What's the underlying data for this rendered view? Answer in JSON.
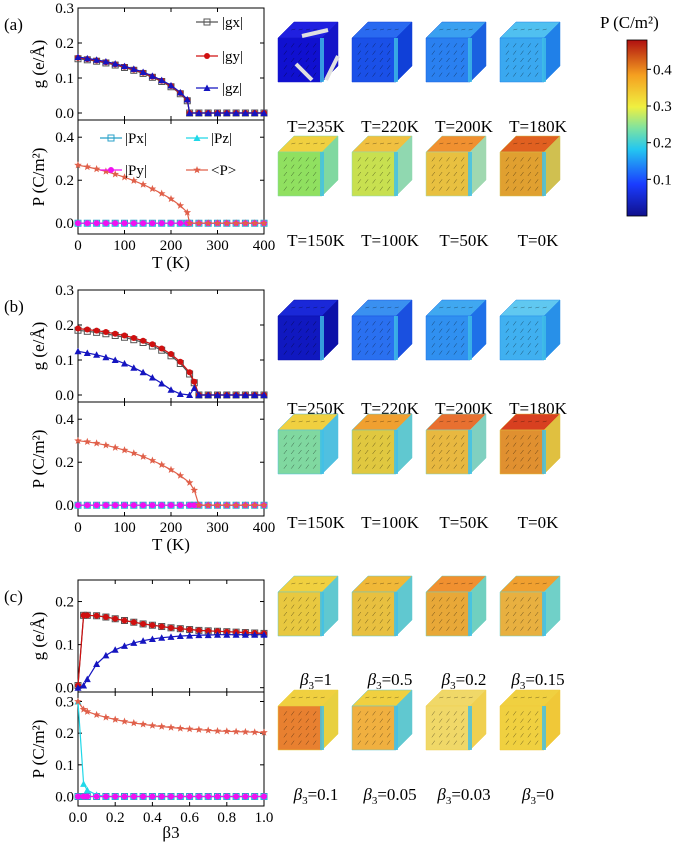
{
  "colorbar": {
    "title": "P (C/m²)",
    "ticks": [
      0.1,
      0.2,
      0.3,
      0.4
    ],
    "min": 0.0,
    "max": 0.48
  },
  "panels": [
    {
      "label": "(a)",
      "g_ylabel": "g (e/Å)",
      "p_ylabel": "P (C/m²)",
      "xlabel": "T (K)",
      "g_legend": [
        "|gx|",
        "|gy|",
        "|gz|"
      ],
      "p_legend": [
        "|Px|",
        "|Pz|",
        "|Py|",
        "<P>"
      ],
      "cube_labels": [
        "T=235K",
        "T=220K",
        "T=200K",
        "T=180K",
        "T=150K",
        "T=100K",
        "T=50K",
        "T=0K"
      ]
    },
    {
      "label": "(b)",
      "g_ylabel": "g (e/Å)",
      "p_ylabel": "P (C/m²)",
      "xlabel": "T (K)",
      "cube_labels": [
        "T=250K",
        "T=220K",
        "T=200K",
        "T=180K",
        "T=150K",
        "T=100K",
        "T=50K",
        "T=0K"
      ]
    },
    {
      "label": "(c)",
      "g_ylabel": "g (e/Å)",
      "p_ylabel": "P (C/m²)",
      "xlabel": "β3",
      "cube_labels": [
        "β3=1",
        "β3=0.5",
        "β3=0.2",
        "β3=0.15",
        "β3=0.1",
        "β3=0.05",
        "β3=0.03",
        "β3=0"
      ]
    }
  ],
  "chart_data": [
    {
      "type": "line",
      "panel": "a-top",
      "xlim": [
        0,
        400
      ],
      "ylim": [
        -0.02,
        0.3
      ],
      "yticks": [
        0.0,
        0.1,
        0.2,
        0.3
      ],
      "xticks": [
        0,
        100,
        200,
        300,
        400
      ],
      "x": [
        0,
        20,
        40,
        60,
        80,
        100,
        120,
        140,
        160,
        180,
        200,
        220,
        235,
        240,
        260,
        280,
        300,
        320,
        340,
        360,
        380,
        400
      ],
      "series": [
        {
          "name": "|gx|",
          "values": [
            0.155,
            0.152,
            0.148,
            0.143,
            0.137,
            0.13,
            0.122,
            0.113,
            0.102,
            0.09,
            0.075,
            0.055,
            0.035,
            0.0,
            0.0,
            0.0,
            0.0,
            0.0,
            0.0,
            0.0,
            0.0,
            0.0
          ]
        },
        {
          "name": "|gy|",
          "values": [
            0.158,
            0.154,
            0.15,
            0.145,
            0.139,
            0.132,
            0.124,
            0.115,
            0.104,
            0.092,
            0.077,
            0.057,
            0.037,
            0.0,
            0.0,
            0.0,
            0.0,
            0.0,
            0.0,
            0.0,
            0.0,
            0.0
          ]
        },
        {
          "name": "|gz|",
          "values": [
            0.16,
            0.156,
            0.152,
            0.147,
            0.141,
            0.134,
            0.126,
            0.117,
            0.106,
            0.094,
            0.079,
            0.059,
            0.039,
            0.0,
            0.0,
            0.0,
            0.0,
            0.0,
            0.0,
            0.0,
            0.0,
            0.0
          ]
        }
      ]
    },
    {
      "type": "line",
      "panel": "a-bottom",
      "xlim": [
        0,
        400
      ],
      "ylim": [
        -0.05,
        0.48
      ],
      "yticks": [
        0.0,
        0.2,
        0.4
      ],
      "xticks": [
        0,
        100,
        200,
        300,
        400
      ],
      "x": [
        0,
        20,
        40,
        60,
        80,
        100,
        120,
        140,
        160,
        180,
        200,
        220,
        235,
        240,
        260,
        280,
        300,
        320,
        340,
        360,
        380,
        400
      ],
      "series": [
        {
          "name": "|Px|",
          "values": [
            0,
            0,
            0,
            0,
            0,
            0,
            0,
            0,
            0,
            0,
            0,
            0,
            0,
            0,
            0,
            0,
            0,
            0,
            0,
            0,
            0,
            0
          ]
        },
        {
          "name": "|Pz|",
          "values": [
            0,
            0,
            0,
            0,
            0,
            0,
            0,
            0,
            0,
            0,
            0,
            0,
            0,
            0,
            0,
            0,
            0,
            0,
            0,
            0,
            0,
            0
          ]
        },
        {
          "name": "|Py|",
          "values": [
            0,
            0,
            0,
            0,
            0,
            0,
            0,
            0,
            0,
            0,
            0,
            0,
            0,
            0,
            0,
            0,
            0,
            0,
            0,
            0,
            0,
            0
          ]
        },
        {
          "name": "<P>",
          "values": [
            0.27,
            0.262,
            0.252,
            0.241,
            0.228,
            0.214,
            0.198,
            0.18,
            0.16,
            0.138,
            0.113,
            0.082,
            0.05,
            0.0,
            0.0,
            0.0,
            0.0,
            0.0,
            0.0,
            0.0,
            0.0,
            0.0
          ]
        }
      ]
    },
    {
      "type": "line",
      "panel": "b-top",
      "xlim": [
        0,
        400
      ],
      "ylim": [
        -0.02,
        0.3
      ],
      "yticks": [
        0.0,
        0.1,
        0.2,
        0.3
      ],
      "xticks": [
        0,
        100,
        200,
        300,
        400
      ],
      "x": [
        0,
        20,
        40,
        60,
        80,
        100,
        120,
        140,
        160,
        180,
        200,
        220,
        240,
        250,
        260,
        280,
        300,
        320,
        340,
        360,
        380,
        400
      ],
      "series": [
        {
          "name": "|gx|",
          "values": [
            0.185,
            0.182,
            0.179,
            0.175,
            0.17,
            0.165,
            0.158,
            0.15,
            0.14,
            0.128,
            0.112,
            0.09,
            0.06,
            0.035,
            0.0,
            0.0,
            0.0,
            0.0,
            0.0,
            0.0,
            0.0,
            0.0
          ]
        },
        {
          "name": "|gy|",
          "values": [
            0.19,
            0.187,
            0.184,
            0.18,
            0.175,
            0.17,
            0.163,
            0.155,
            0.145,
            0.133,
            0.117,
            0.095,
            0.065,
            0.038,
            0.0,
            0.0,
            0.0,
            0.0,
            0.0,
            0.0,
            0.0,
            0.0
          ]
        },
        {
          "name": "|gz|",
          "values": [
            0.125,
            0.12,
            0.115,
            0.108,
            0.1,
            0.09,
            0.078,
            0.065,
            0.05,
            0.033,
            0.015,
            0.003,
            0.0,
            0.02,
            0.0,
            0.0,
            0.0,
            0.0,
            0.0,
            0.0,
            0.0,
            0.0
          ]
        }
      ]
    },
    {
      "type": "line",
      "panel": "b-bottom",
      "xlim": [
        0,
        400
      ],
      "ylim": [
        -0.05,
        0.48
      ],
      "yticks": [
        0.0,
        0.2,
        0.4
      ],
      "xticks": [
        0,
        100,
        200,
        300,
        400
      ],
      "x": [
        0,
        20,
        40,
        60,
        80,
        100,
        120,
        140,
        160,
        180,
        200,
        220,
        240,
        250,
        260,
        280,
        300,
        320,
        340,
        360,
        380,
        400
      ],
      "series": [
        {
          "name": "|Px|",
          "values": [
            0,
            0,
            0,
            0,
            0,
            0,
            0,
            0,
            0,
            0,
            0,
            0,
            0,
            0,
            0,
            0,
            0,
            0,
            0,
            0,
            0,
            0
          ]
        },
        {
          "name": "|Pz|",
          "values": [
            0,
            0,
            0,
            0,
            0,
            0,
            0,
            0,
            0,
            0,
            0,
            0,
            0,
            0,
            0,
            0,
            0,
            0,
            0,
            0,
            0,
            0
          ]
        },
        {
          "name": "|Py|",
          "values": [
            0,
            0,
            0,
            0,
            0,
            0,
            0,
            0,
            0,
            0,
            0,
            0,
            0,
            0,
            0,
            0,
            0,
            0,
            0,
            0,
            0,
            0
          ]
        },
        {
          "name": "<P>",
          "values": [
            0.3,
            0.295,
            0.288,
            0.279,
            0.268,
            0.256,
            0.242,
            0.226,
            0.208,
            0.188,
            0.165,
            0.138,
            0.105,
            0.07,
            0.0,
            0.0,
            0.0,
            0.0,
            0.0,
            0.0,
            0.0,
            0.0
          ]
        }
      ]
    },
    {
      "type": "line",
      "panel": "c-top",
      "xlim": [
        0,
        1
      ],
      "ylim": [
        -0.01,
        0.25
      ],
      "yticks": [
        0.0,
        0.1,
        0.2
      ],
      "xticks": [
        0.0,
        0.2,
        0.4,
        0.6,
        0.8,
        1.0
      ],
      "x": [
        0,
        0.03,
        0.05,
        0.1,
        0.15,
        0.2,
        0.25,
        0.3,
        0.35,
        0.4,
        0.45,
        0.5,
        0.55,
        0.6,
        0.65,
        0.7,
        0.75,
        0.8,
        0.85,
        0.9,
        0.95,
        1.0
      ],
      "series": [
        {
          "name": "|gx|",
          "values": [
            0.005,
            0.168,
            0.168,
            0.167,
            0.164,
            0.16,
            0.156,
            0.152,
            0.148,
            0.145,
            0.142,
            0.139,
            0.137,
            0.135,
            0.133,
            0.132,
            0.131,
            0.13,
            0.129,
            0.128,
            0.127,
            0.126
          ]
        },
        {
          "name": "|gy|",
          "values": [
            0.005,
            0.168,
            0.168,
            0.167,
            0.164,
            0.16,
            0.156,
            0.152,
            0.148,
            0.145,
            0.142,
            0.139,
            0.137,
            0.135,
            0.133,
            0.132,
            0.131,
            0.13,
            0.129,
            0.128,
            0.127,
            0.126
          ]
        },
        {
          "name": "|gz|",
          "values": [
            0.0,
            0.005,
            0.02,
            0.055,
            0.075,
            0.088,
            0.097,
            0.104,
            0.109,
            0.113,
            0.116,
            0.118,
            0.12,
            0.121,
            0.122,
            0.122,
            0.123,
            0.123,
            0.123,
            0.123,
            0.123,
            0.123
          ]
        }
      ]
    },
    {
      "type": "line",
      "panel": "c-bottom",
      "xlim": [
        0,
        1
      ],
      "ylim": [
        -0.03,
        0.33
      ],
      "yticks": [
        0.0,
        0.1,
        0.2,
        0.3
      ],
      "xticks": [
        0.0,
        0.2,
        0.4,
        0.6,
        0.8,
        1.0
      ],
      "x": [
        0,
        0.03,
        0.05,
        0.1,
        0.15,
        0.2,
        0.25,
        0.3,
        0.35,
        0.4,
        0.45,
        0.5,
        0.55,
        0.6,
        0.65,
        0.7,
        0.75,
        0.8,
        0.85,
        0.9,
        0.95,
        1.0
      ],
      "series": [
        {
          "name": "|Px|",
          "values": [
            0,
            0,
            0,
            0,
            0,
            0,
            0,
            0,
            0,
            0,
            0,
            0,
            0,
            0,
            0,
            0,
            0,
            0,
            0,
            0,
            0,
            0
          ]
        },
        {
          "name": "|Pz|",
          "values": [
            0.3,
            0.04,
            0.02,
            0.005,
            0,
            0,
            0,
            0,
            0,
            0,
            0,
            0,
            0,
            0,
            0,
            0,
            0,
            0,
            0,
            0,
            0,
            0
          ]
        },
        {
          "name": "|Py|",
          "values": [
            0,
            0,
            0,
            0,
            0,
            0,
            0,
            0,
            0,
            0,
            0,
            0,
            0,
            0,
            0,
            0,
            0,
            0,
            0,
            0,
            0,
            0
          ]
        },
        {
          "name": "<P>",
          "values": [
            0.3,
            0.275,
            0.268,
            0.258,
            0.25,
            0.243,
            0.237,
            0.232,
            0.228,
            0.224,
            0.221,
            0.218,
            0.215,
            0.213,
            0.211,
            0.209,
            0.207,
            0.206,
            0.205,
            0.204,
            0.203,
            0.202
          ]
        }
      ]
    }
  ]
}
